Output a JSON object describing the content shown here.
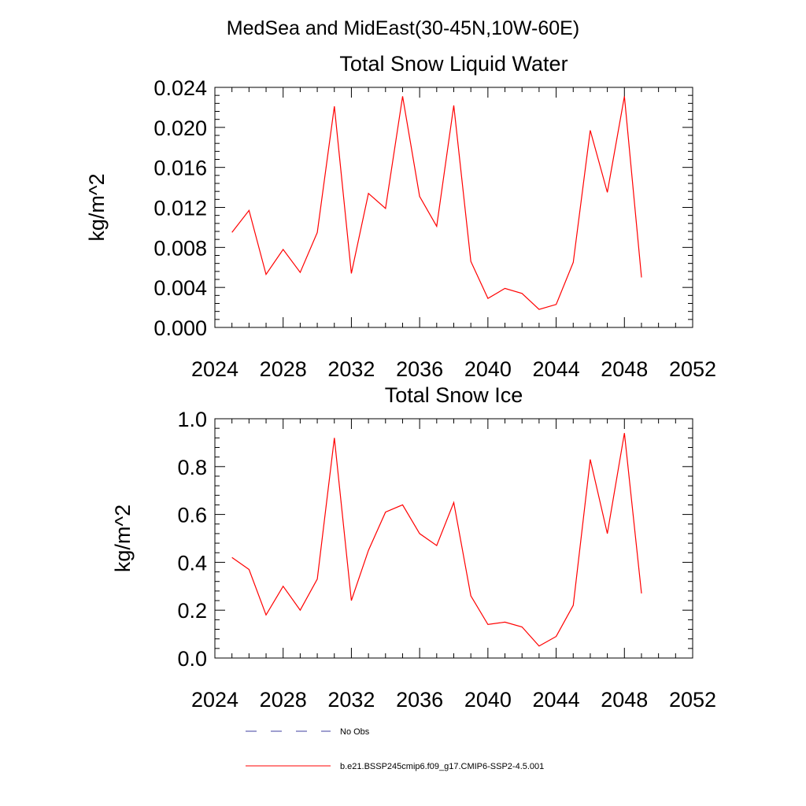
{
  "figure": {
    "suptitle": "MedSea and MidEast(30-45N,10W-60E)"
  },
  "legend": {
    "entries": [
      {
        "label": "No Obs",
        "color": "#3f3f9f",
        "dash": "dashed"
      },
      {
        "label": "b.e21.BSSP245cmip6.f09_g17.CMIP6-SSP2-4.5.001",
        "color": "#ff0000",
        "dash": "solid"
      }
    ],
    "placement": "bottom"
  },
  "chart_data": [
    {
      "type": "line",
      "title": "Total Snow Liquid Water",
      "xlabel": "",
      "ylabel": "kg/m^2",
      "xlim": [
        2024,
        2052
      ],
      "ylim": [
        0.0,
        0.024
      ],
      "xticks": [
        2024,
        2028,
        2032,
        2036,
        2040,
        2044,
        2048,
        2052
      ],
      "xtick_labels": [
        "2024",
        "2028",
        "2032",
        "2036",
        "2040",
        "2044",
        "2048",
        "2052"
      ],
      "yticks": [
        0.0,
        0.004,
        0.008,
        0.012,
        0.016,
        0.02,
        0.024
      ],
      "ytick_labels": [
        "0.000",
        "0.004",
        "0.008",
        "0.012",
        "0.016",
        "0.020",
        "0.024"
      ],
      "grid": false,
      "x": [
        2025,
        2026,
        2027,
        2028,
        2029,
        2030,
        2031,
        2032,
        2033,
        2034,
        2035,
        2036,
        2037,
        2038,
        2039,
        2040,
        2041,
        2042,
        2043,
        2044,
        2045,
        2046,
        2047,
        2048,
        2049
      ],
      "series": [
        {
          "color": "#ff0000",
          "values": [
            0.0095,
            0.0117,
            0.0053,
            0.0078,
            0.0055,
            0.0095,
            0.0221,
            0.0054,
            0.0134,
            0.0119,
            0.0231,
            0.0131,
            0.0101,
            0.0222,
            0.0066,
            0.0029,
            0.0039,
            0.0034,
            0.0018,
            0.0023,
            0.0065,
            0.0197,
            0.0135,
            0.0231,
            0.005
          ]
        }
      ]
    },
    {
      "type": "line",
      "title": "Total Snow Ice",
      "xlabel": "",
      "ylabel": "kg/m^2",
      "xlim": [
        2024,
        2052
      ],
      "ylim": [
        0.0,
        1.0
      ],
      "xticks": [
        2024,
        2028,
        2032,
        2036,
        2040,
        2044,
        2048,
        2052
      ],
      "xtick_labels": [
        "2024",
        "2028",
        "2032",
        "2036",
        "2040",
        "2044",
        "2048",
        "2052"
      ],
      "yticks": [
        0.0,
        0.2,
        0.4,
        0.6,
        0.8,
        1.0
      ],
      "ytick_labels": [
        "0.0",
        "0.2",
        "0.4",
        "0.6",
        "0.8",
        "1.0"
      ],
      "grid": false,
      "x": [
        2025,
        2026,
        2027,
        2028,
        2029,
        2030,
        2031,
        2032,
        2033,
        2034,
        2035,
        2036,
        2037,
        2038,
        2039,
        2040,
        2041,
        2042,
        2043,
        2044,
        2045,
        2046,
        2047,
        2048,
        2049
      ],
      "series": [
        {
          "color": "#ff0000",
          "values": [
            0.42,
            0.37,
            0.18,
            0.3,
            0.2,
            0.33,
            0.92,
            0.24,
            0.45,
            0.61,
            0.64,
            0.52,
            0.47,
            0.65,
            0.26,
            0.14,
            0.15,
            0.13,
            0.05,
            0.09,
            0.22,
            0.83,
            0.52,
            0.94,
            0.27
          ]
        }
      ]
    }
  ]
}
